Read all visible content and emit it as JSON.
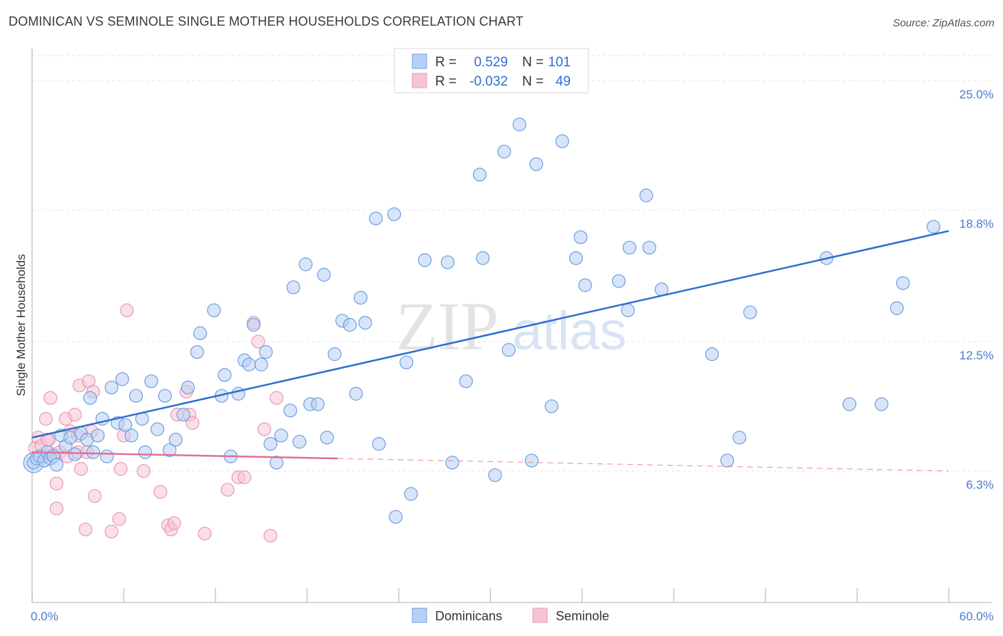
{
  "title": "DOMINICAN VS SEMINOLE SINGLE MOTHER HOUSEHOLDS CORRELATION CHART",
  "source": "Source: ZipAtlas.com",
  "watermark": {
    "zip": "ZIP",
    "atlas": "atlas"
  },
  "legend_top": [
    {
      "r_label": "R =",
      "r_value": "0.529",
      "n_label": "N =",
      "n_value": "101"
    },
    {
      "r_label": "R =",
      "r_value": "-0.032",
      "n_label": "N =",
      "n_value": "49"
    }
  ],
  "legend_bottom": [
    "Dominicans",
    "Seminole"
  ],
  "colors": {
    "blue": "#6e9fe0",
    "blue_fill": "#b8d0f3",
    "blue_line": "#2f6fcf",
    "pink": "#e89ab3",
    "pink_fill": "#f6c5d5",
    "pink_line": "#e0709a",
    "tick_text": "#4a7bd0"
  },
  "chart_data": {
    "type": "scatter",
    "title": "DOMINICAN VS SEMINOLE SINGLE MOTHER HOUSEHOLDS CORRELATION CHART",
    "xlabel": "",
    "ylabel": "Single Mother Households",
    "xlim": [
      0,
      60
    ],
    "ylim": [
      0,
      26.2
    ],
    "x_tick_labels": [
      "0.0%",
      "60.0%"
    ],
    "y_ticks": [
      6.3,
      12.5,
      18.8,
      25.0
    ],
    "y_tick_labels": [
      "6.3%",
      "12.5%",
      "18.8%",
      "25.0%"
    ],
    "grid": true,
    "series": [
      {
        "name": "Dominicans",
        "trend": {
          "x0": 0,
          "y0": 7.9,
          "x1": 60,
          "y1": 17.8
        },
        "points": [
          [
            0.1,
            6.7
          ],
          [
            0.3,
            6.9
          ],
          [
            0.5,
            7.0
          ],
          [
            0.8,
            6.8
          ],
          [
            1.0,
            7.2
          ],
          [
            1.2,
            6.9
          ],
          [
            1.4,
            7.0
          ],
          [
            1.6,
            6.6
          ],
          [
            1.9,
            8.0
          ],
          [
            2.2,
            7.5
          ],
          [
            2.5,
            7.9
          ],
          [
            2.8,
            7.1
          ],
          [
            3.2,
            8.1
          ],
          [
            3.6,
            7.8
          ],
          [
            3.8,
            9.8
          ],
          [
            4.0,
            7.2
          ],
          [
            4.3,
            8.0
          ],
          [
            4.6,
            8.8
          ],
          [
            4.9,
            7.0
          ],
          [
            5.2,
            10.3
          ],
          [
            5.6,
            8.6
          ],
          [
            5.9,
            10.7
          ],
          [
            6.1,
            8.5
          ],
          [
            6.5,
            8.0
          ],
          [
            6.8,
            9.9
          ],
          [
            7.2,
            8.8
          ],
          [
            7.4,
            7.2
          ],
          [
            7.8,
            10.6
          ],
          [
            8.2,
            8.3
          ],
          [
            8.7,
            9.9
          ],
          [
            9.0,
            7.3
          ],
          [
            9.4,
            7.8
          ],
          [
            9.9,
            9.0
          ],
          [
            10.2,
            10.3
          ],
          [
            10.8,
            12.0
          ],
          [
            11.0,
            12.9
          ],
          [
            11.9,
            14.0
          ],
          [
            12.4,
            9.9
          ],
          [
            12.6,
            10.9
          ],
          [
            13.0,
            7.0
          ],
          [
            13.5,
            10.0
          ],
          [
            13.9,
            11.6
          ],
          [
            14.2,
            11.4
          ],
          [
            14.5,
            13.3
          ],
          [
            15.0,
            11.4
          ],
          [
            15.3,
            12.0
          ],
          [
            15.6,
            7.6
          ],
          [
            16.0,
            6.7
          ],
          [
            16.3,
            8.0
          ],
          [
            16.9,
            9.2
          ],
          [
            17.1,
            15.1
          ],
          [
            17.5,
            7.7
          ],
          [
            17.9,
            16.2
          ],
          [
            18.2,
            9.5
          ],
          [
            18.7,
            9.5
          ],
          [
            19.1,
            15.7
          ],
          [
            19.3,
            7.9
          ],
          [
            19.8,
            11.9
          ],
          [
            20.3,
            13.5
          ],
          [
            20.8,
            13.3
          ],
          [
            21.2,
            10.0
          ],
          [
            21.5,
            14.6
          ],
          [
            21.8,
            13.4
          ],
          [
            22.5,
            18.4
          ],
          [
            22.7,
            7.6
          ],
          [
            23.8,
            4.1
          ],
          [
            23.7,
            18.6
          ],
          [
            24.5,
            11.5
          ],
          [
            24.8,
            5.2
          ],
          [
            25.7,
            16.4
          ],
          [
            27.2,
            16.3
          ],
          [
            27.5,
            6.7
          ],
          [
            28.4,
            10.6
          ],
          [
            29.3,
            20.5
          ],
          [
            29.5,
            16.5
          ],
          [
            30.3,
            6.1
          ],
          [
            30.9,
            21.6
          ],
          [
            31.2,
            12.1
          ],
          [
            31.9,
            22.9
          ],
          [
            32.7,
            6.8
          ],
          [
            33.0,
            21.0
          ],
          [
            34.0,
            9.4
          ],
          [
            34.7,
            22.1
          ],
          [
            35.6,
            16.5
          ],
          [
            35.9,
            17.5
          ],
          [
            36.2,
            15.2
          ],
          [
            38.4,
            15.4
          ],
          [
            39.0,
            14.0
          ],
          [
            39.1,
            17.0
          ],
          [
            40.2,
            19.5
          ],
          [
            40.4,
            17.0
          ],
          [
            41.2,
            15.0
          ],
          [
            44.5,
            11.9
          ],
          [
            45.5,
            6.8
          ],
          [
            46.3,
            7.9
          ],
          [
            47.0,
            13.9
          ],
          [
            52.0,
            16.5
          ],
          [
            53.5,
            9.5
          ],
          [
            55.6,
            9.5
          ],
          [
            56.6,
            14.1
          ],
          [
            57.0,
            15.3
          ],
          [
            59.0,
            18.0
          ]
        ]
      },
      {
        "name": "Seminole",
        "trend_solid": {
          "x0": 0,
          "y0": 7.2,
          "x1": 20,
          "y1": 6.9
        },
        "trend_dashed": {
          "x0": 20,
          "y0": 6.9,
          "x1": 60,
          "y1": 6.3
        },
        "points": [
          [
            0.2,
            7.4
          ],
          [
            0.4,
            7.9
          ],
          [
            0.6,
            7.5
          ],
          [
            0.8,
            7.0
          ],
          [
            0.9,
            8.8
          ],
          [
            1.1,
            7.8
          ],
          [
            1.2,
            9.8
          ],
          [
            1.4,
            7.1
          ],
          [
            1.6,
            5.7
          ],
          [
            1.6,
            4.5
          ],
          [
            1.8,
            7.2
          ],
          [
            2.2,
            8.8
          ],
          [
            2.3,
            7.0
          ],
          [
            2.5,
            8.2
          ],
          [
            3.0,
            8.0
          ],
          [
            3.0,
            7.2
          ],
          [
            3.1,
            10.4
          ],
          [
            3.2,
            6.4
          ],
          [
            3.5,
            3.5
          ],
          [
            3.6,
            7.2
          ],
          [
            3.7,
            10.6
          ],
          [
            3.9,
            8.2
          ],
          [
            4.0,
            10.1
          ],
          [
            4.1,
            5.1
          ],
          [
            5.2,
            3.4
          ],
          [
            5.7,
            4.0
          ],
          [
            5.8,
            6.4
          ],
          [
            6.0,
            8.0
          ],
          [
            6.2,
            14.0
          ],
          [
            7.3,
            6.3
          ],
          [
            8.4,
            5.3
          ],
          [
            8.9,
            3.7
          ],
          [
            9.1,
            3.5
          ],
          [
            9.3,
            3.8
          ],
          [
            10.1,
            10.1
          ],
          [
            10.3,
            9.0
          ],
          [
            10.5,
            8.6
          ],
          [
            11.3,
            3.3
          ],
          [
            12.8,
            5.4
          ],
          [
            13.5,
            6.0
          ],
          [
            13.9,
            6.0
          ],
          [
            14.5,
            13.4
          ],
          [
            14.8,
            12.5
          ],
          [
            15.2,
            8.3
          ],
          [
            15.6,
            3.2
          ],
          [
            16.0,
            9.8
          ],
          [
            9.5,
            9.0
          ],
          [
            2.8,
            9.0
          ],
          [
            1.0,
            7.8
          ]
        ]
      }
    ]
  }
}
